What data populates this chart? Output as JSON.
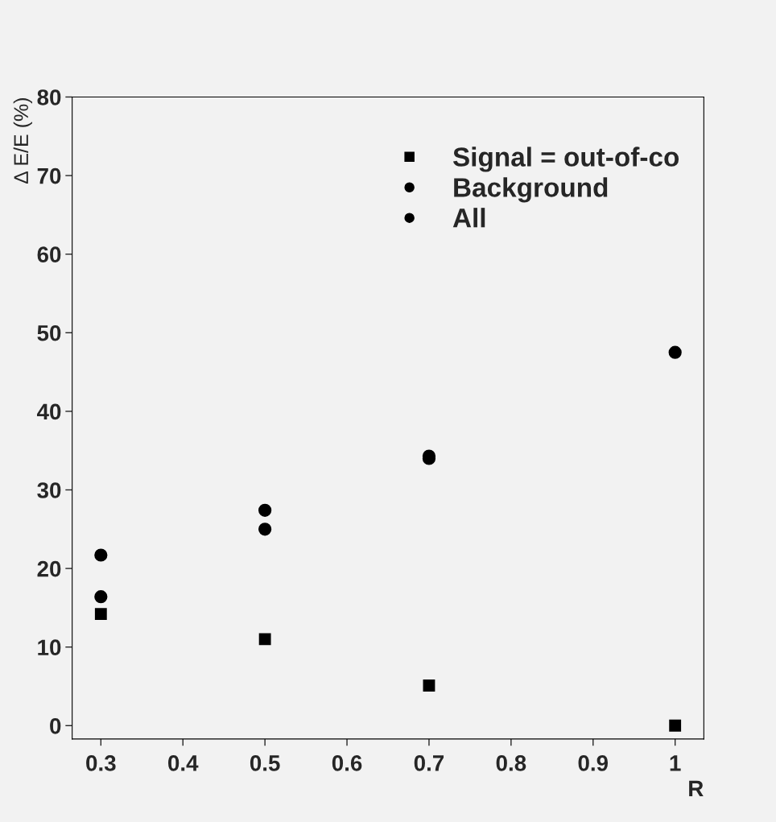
{
  "chart_data": {
    "type": "scatter",
    "xlabel": "R",
    "ylabel": "Δ E/E (%)",
    "xlim": [
      0.265,
      1.035
    ],
    "ylim": [
      -1.7,
      80
    ],
    "xticks": [
      0.3,
      0.4,
      0.5,
      0.6,
      0.7,
      0.8,
      0.9,
      {
        "value": 1.0,
        "label": "1"
      }
    ],
    "yticks": [
      0,
      10,
      20,
      30,
      40,
      50,
      60,
      70,
      80
    ],
    "grid": false,
    "legend": "top right",
    "series": [
      {
        "name": "Signal = out-of-co",
        "color": "#000000",
        "marker": "square",
        "x": [
          0.3,
          0.5,
          0.7,
          1.0
        ],
        "values": [
          14.2,
          11.0,
          5.1,
          0
        ]
      },
      {
        "name": "Background",
        "color": "#000000",
        "marker": "circle",
        "x": [
          0.3,
          0.5,
          0.7
        ],
        "values": [
          16.4,
          25.0,
          34.0
        ]
      },
      {
        "name": "All",
        "color": "#000000",
        "marker": "circle",
        "x": [
          0.3,
          0.5,
          0.7,
          1.0
        ],
        "values": [
          21.7,
          27.4,
          34.3,
          47.5
        ]
      }
    ]
  }
}
